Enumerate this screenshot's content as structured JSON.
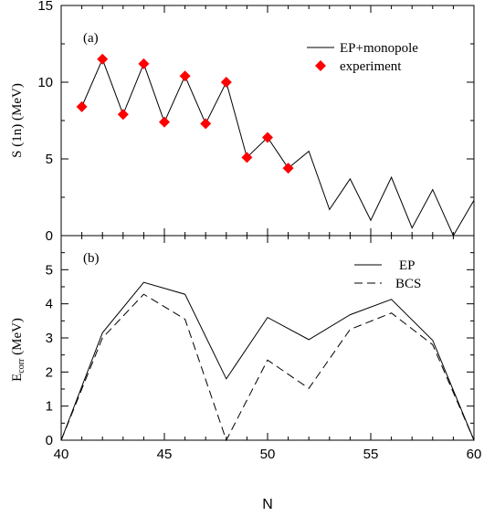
{
  "chart_data": [
    {
      "type": "line",
      "panel": "(a)",
      "ylabel": "S (1n) (MeV)",
      "xlim": [
        40,
        60
      ],
      "ylim": [
        0,
        15
      ],
      "xticks": [
        40,
        45,
        50,
        55,
        60
      ],
      "yticks": [
        0,
        5,
        10,
        15
      ],
      "grid": false,
      "legend": "top-right",
      "series": [
        {
          "name": "EP+monopole",
          "style": "solid",
          "x": [
            41,
            42,
            43,
            44,
            45,
            46,
            47,
            48,
            49,
            50,
            51,
            52,
            53,
            54,
            55,
            56,
            57,
            58,
            59,
            60
          ],
          "y": [
            8.4,
            11.5,
            7.9,
            11.2,
            7.4,
            10.4,
            7.3,
            10.0,
            5.1,
            6.4,
            4.4,
            5.5,
            1.7,
            3.7,
            1.0,
            3.8,
            0.5,
            3.0,
            0.0,
            2.3
          ]
        },
        {
          "name": "experiment",
          "style": "marker",
          "color": "#ff0000",
          "marker": "diamond",
          "x": [
            41,
            42,
            43,
            44,
            45,
            46,
            47,
            48,
            49,
            50,
            51
          ],
          "y": [
            8.4,
            11.5,
            7.9,
            11.2,
            7.4,
            10.4,
            7.3,
            10.0,
            5.1,
            6.4,
            4.4
          ]
        }
      ]
    },
    {
      "type": "line",
      "panel": "(b)",
      "ylabel_main": "E",
      "ylabel_sub": "corr",
      "ylabel_rest": " (MeV)",
      "xlabel": "N",
      "xlim": [
        40,
        60
      ],
      "ylim": [
        0,
        6
      ],
      "xticks": [
        40,
        45,
        50,
        55,
        60
      ],
      "yticks": [
        0,
        1,
        2,
        3,
        4,
        5
      ],
      "grid": false,
      "legend": "top-right",
      "series": [
        {
          "name": "EP",
          "style": "solid",
          "x": [
            40,
            42,
            44,
            46,
            48,
            50,
            52,
            54,
            56,
            58,
            60
          ],
          "y": [
            0.0,
            3.15,
            4.63,
            4.28,
            1.8,
            3.6,
            2.95,
            3.68,
            4.13,
            2.93,
            0.0
          ]
        },
        {
          "name": "BCS",
          "style": "dashed",
          "x": [
            40,
            42,
            44,
            46,
            48,
            50,
            52,
            54,
            56,
            58,
            60
          ],
          "y": [
            0.0,
            3.0,
            4.28,
            3.55,
            0.0,
            2.35,
            1.52,
            3.25,
            3.73,
            2.8,
            0.0
          ]
        }
      ]
    }
  ]
}
